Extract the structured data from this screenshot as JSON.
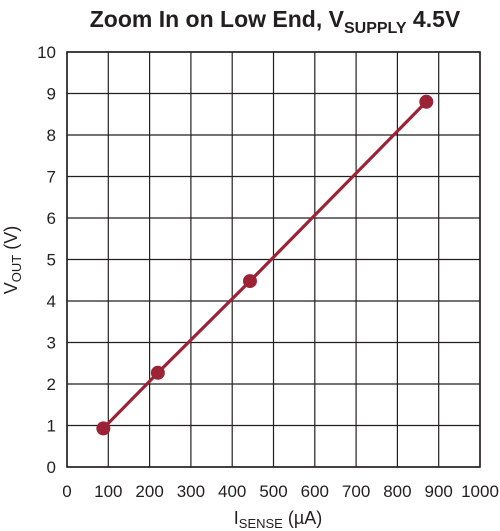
{
  "chart_data": {
    "type": "line",
    "title": {
      "main": "Zoom In on Low End, V",
      "subscript": "SUPPLY",
      "suffix": " 4.5V"
    },
    "xlabel": {
      "main": "I",
      "subscript": "SENSE",
      "suffix": " (µA)"
    },
    "ylabel": {
      "main": "V",
      "subscript": "OUT",
      "suffix": " (V)"
    },
    "xlim": [
      0,
      1000
    ],
    "ylim": [
      0,
      10
    ],
    "x_ticks": [
      0,
      100,
      200,
      300,
      400,
      500,
      600,
      700,
      800,
      900,
      1000
    ],
    "y_ticks": [
      0,
      1,
      2,
      3,
      4,
      5,
      6,
      7,
      8,
      9,
      10
    ],
    "grid": true,
    "series": [
      {
        "x": [
          88,
          220,
          443,
          870
        ],
        "y": [
          0.93,
          2.27,
          4.48,
          8.8
        ],
        "color": "#9b2335",
        "markers": true
      }
    ]
  }
}
